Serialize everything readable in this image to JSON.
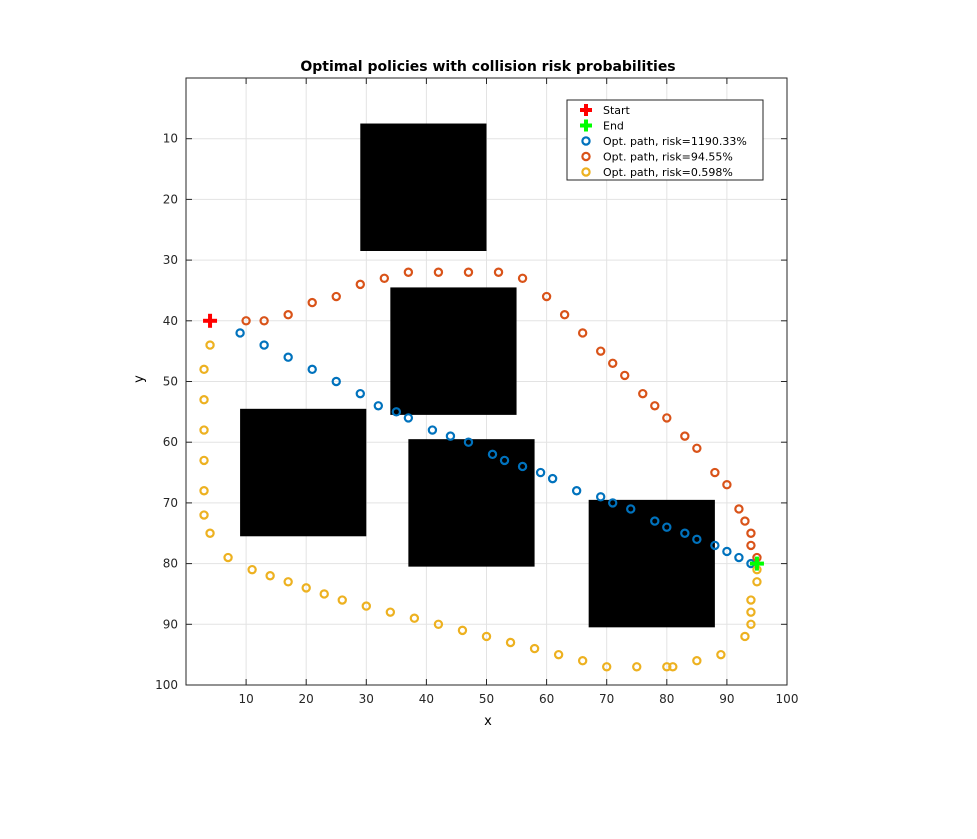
{
  "chart_data": {
    "type": "scatter",
    "title": "Optimal policies with collision risk probabilities",
    "xlabel": "x",
    "ylabel": "y",
    "xlim": [
      0,
      100
    ],
    "ylim": [
      100,
      0
    ],
    "y_reversed": true,
    "grid": true,
    "legend_position": "top-right",
    "x_ticks": [
      10,
      20,
      30,
      40,
      50,
      60,
      70,
      80,
      90,
      100
    ],
    "y_ticks": [
      10,
      20,
      30,
      40,
      50,
      60,
      70,
      80,
      90,
      100
    ],
    "obstacles": [
      {
        "x0": 29,
        "x1": 50,
        "y0": 7.5,
        "y1": 28.5
      },
      {
        "x0": 34,
        "x1": 55,
        "y0": 34.5,
        "y1": 55.5
      },
      {
        "x0": 9,
        "x1": 30,
        "y0": 54.5,
        "y1": 75.5
      },
      {
        "x0": 37,
        "x1": 58,
        "y0": 59.5,
        "y1": 80.5
      },
      {
        "x0": 67,
        "x1": 88,
        "y0": 69.5,
        "y1": 90.5
      }
    ],
    "start": {
      "name": "Start",
      "x": 4,
      "y": 40,
      "color": "#ff0000"
    },
    "end": {
      "name": "End",
      "x": 95,
      "y": 80,
      "color": "#00ff00"
    },
    "series": [
      {
        "name": "Opt. path, risk=1190.33%",
        "color": "#0072bd",
        "x": [
          9,
          13,
          17,
          21,
          25,
          29,
          32,
          35,
          37,
          41,
          44,
          47,
          51,
          53,
          56,
          59,
          61,
          65,
          69,
          71,
          74,
          78,
          80,
          83,
          85,
          88,
          90,
          92,
          94
        ],
        "y": [
          42,
          44,
          46,
          48,
          50,
          52,
          54,
          55,
          56,
          58,
          59,
          60,
          62,
          63,
          64,
          65,
          66,
          68,
          69,
          70,
          71,
          73,
          74,
          75,
          76,
          77,
          78,
          79,
          80
        ]
      },
      {
        "name": "Opt. path, risk=94.55%",
        "color": "#d95319",
        "x": [
          10,
          13,
          17,
          21,
          25,
          29,
          33,
          37,
          42,
          47,
          52,
          56,
          60,
          63,
          66,
          69,
          71,
          73,
          76,
          78,
          80,
          83,
          85,
          88,
          90,
          92,
          93,
          94,
          94,
          95
        ],
        "y": [
          40,
          40,
          39,
          37,
          36,
          34,
          33,
          32,
          32,
          32,
          32,
          33,
          36,
          39,
          42,
          45,
          47,
          49,
          52,
          54,
          56,
          59,
          61,
          65,
          67,
          71,
          73,
          75,
          77,
          79
        ]
      },
      {
        "name": "Opt. path, risk=0.598%",
        "color": "#edb120",
        "x": [
          4,
          3,
          3,
          3,
          3,
          3,
          3,
          4,
          7,
          11,
          14,
          17,
          20,
          23,
          26,
          30,
          34,
          38,
          42,
          46,
          50,
          54,
          58,
          62,
          66,
          70,
          75,
          80,
          81,
          85,
          89,
          93,
          94,
          94,
          94,
          95,
          95
        ],
        "y": [
          44,
          48,
          53,
          58,
          63,
          68,
          72,
          75,
          79,
          81,
          82,
          83,
          84,
          85,
          86,
          87,
          88,
          89,
          90,
          91,
          92,
          93,
          94,
          95,
          96,
          97,
          97,
          97,
          97,
          96,
          95,
          92,
          90,
          88,
          86,
          83,
          81
        ]
      }
    ]
  }
}
